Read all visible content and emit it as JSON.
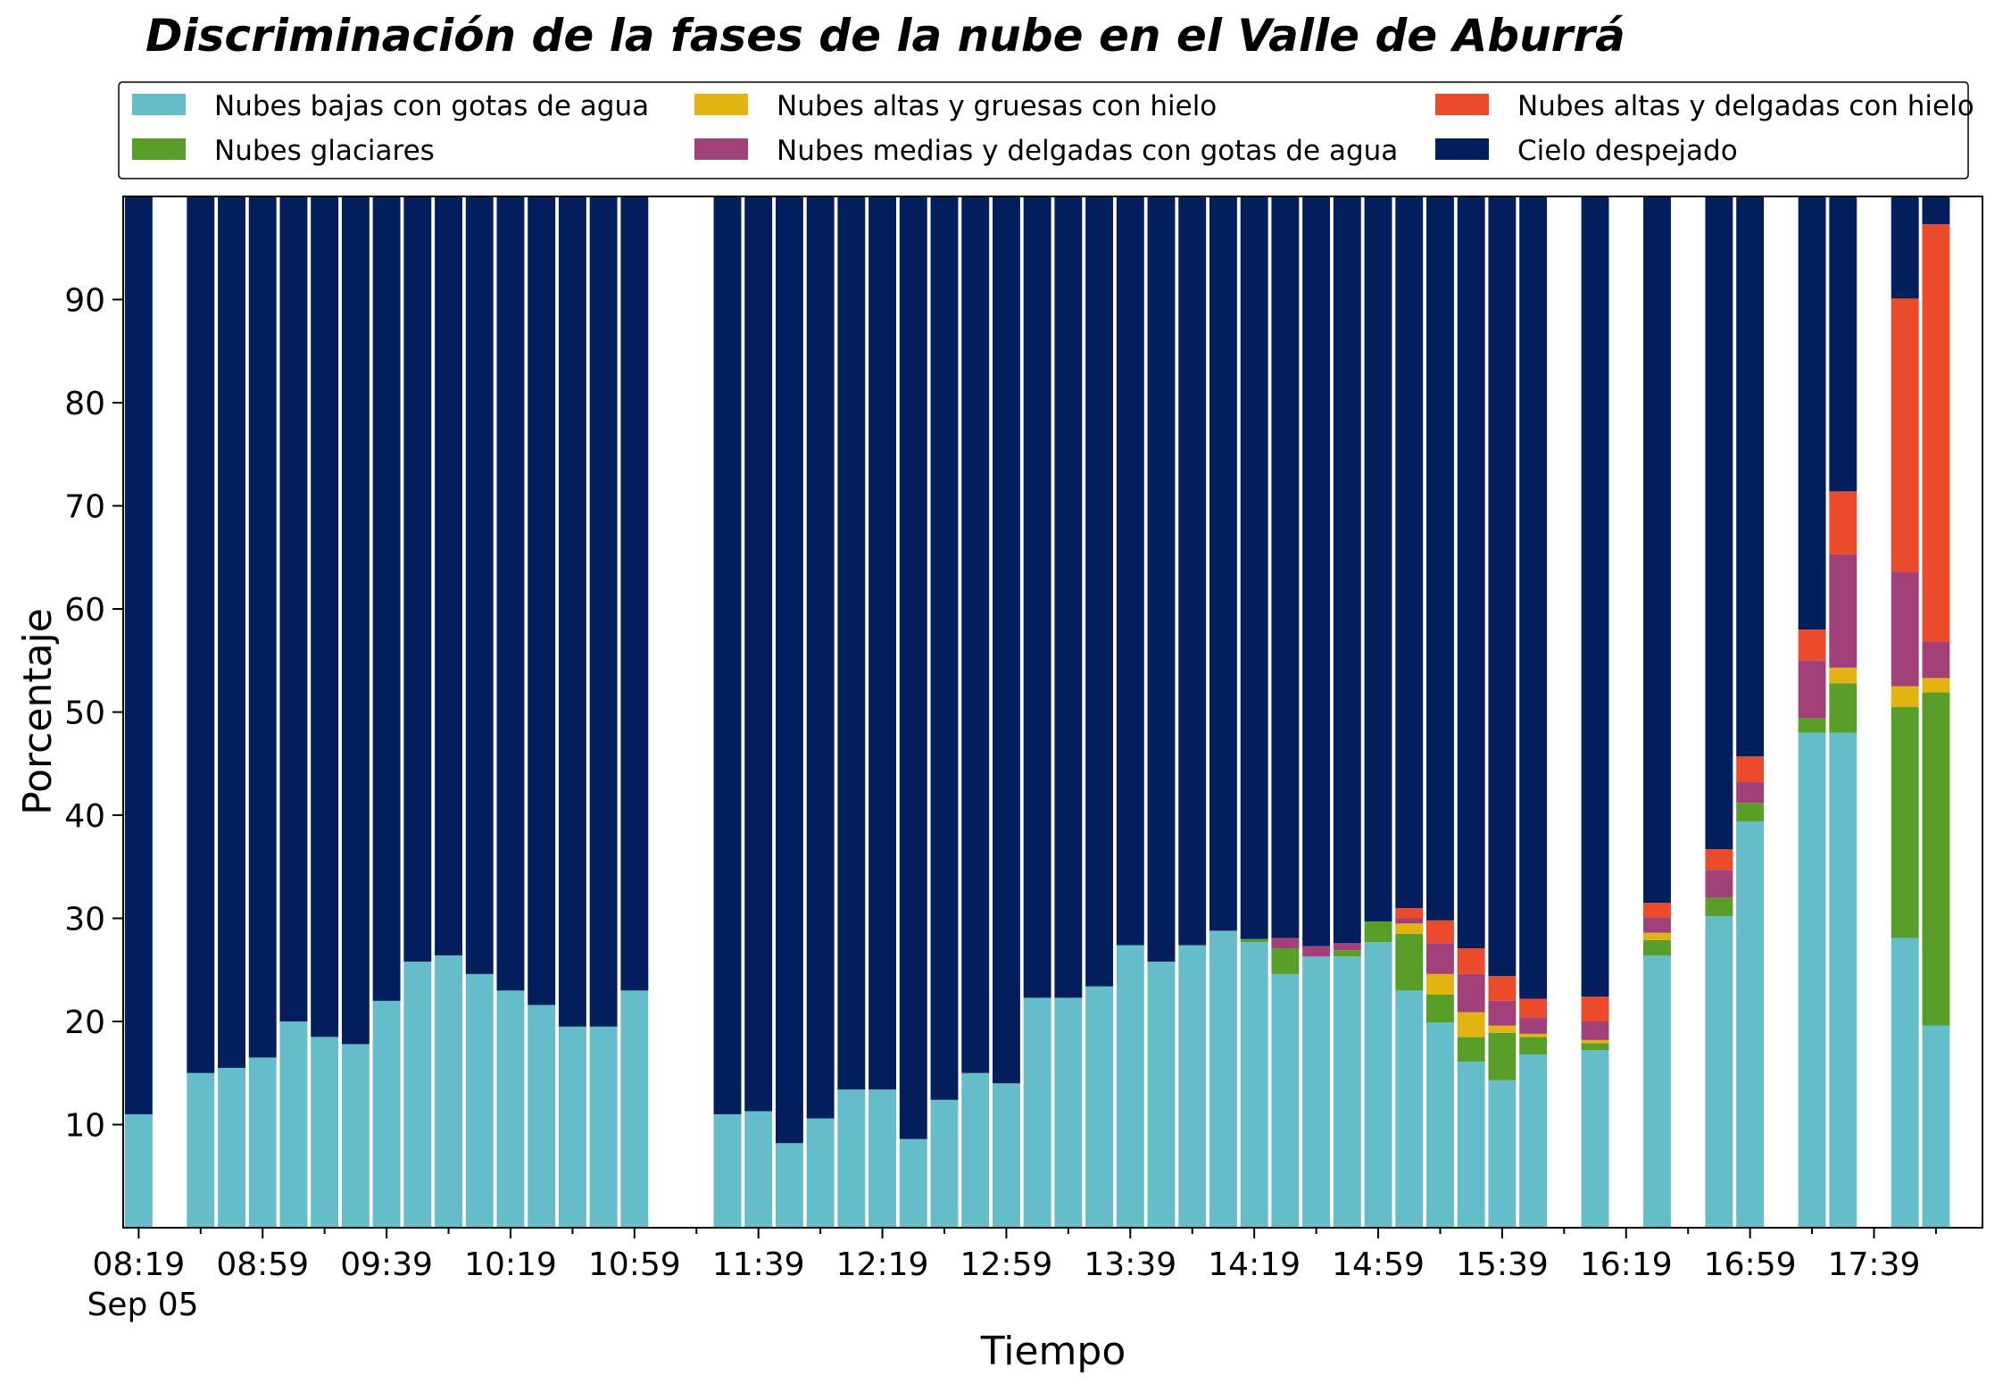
{
  "chart_data": {
    "type": "bar",
    "stacked": true,
    "title": "Discriminación de la fases de la nube en el Valle de Aburrá",
    "xlabel": "Tiempo",
    "ylabel": "Porcentaje",
    "ylim": [
      0,
      100
    ],
    "y_ticks": [
      10,
      20,
      30,
      40,
      50,
      60,
      70,
      80,
      90
    ],
    "x_tick_labels": [
      "08:19",
      "08:59",
      "09:39",
      "10:19",
      "10:59",
      "11:39",
      "12:19",
      "12:59",
      "13:39",
      "14:19",
      "14:59",
      "15:39",
      "16:19",
      "16:59",
      "17:39"
    ],
    "x_tick_slots": [
      0,
      4,
      8,
      12,
      16,
      20,
      24,
      28,
      32,
      36,
      40,
      44,
      48,
      52,
      56
    ],
    "x_date_label": "Sep 05",
    "n_slots": 60,
    "grid": false,
    "legend": {
      "placement": "top",
      "columns": 3
    },
    "series": [
      {
        "name": "Nubes bajas con gotas de agua",
        "color": "#65BDC9"
      },
      {
        "name": "Nubes glaciares",
        "color": "#5A9E2A"
      },
      {
        "name": "Nubes altas y gruesas con hielo",
        "color": "#E3B312"
      },
      {
        "name": "Nubes medias y delgadas con gotas de agua",
        "color": "#A2407A"
      },
      {
        "name": "Nubes altas y delgadas con hielo",
        "color": "#EC4B2B"
      },
      {
        "name": "Cielo despejado",
        "color": "#031E5C"
      }
    ],
    "bars": [
      {
        "slot": 0,
        "values": [
          11,
          0,
          0,
          0,
          0,
          89
        ]
      },
      {
        "slot": 2,
        "values": [
          15,
          0,
          0,
          0,
          0,
          85
        ]
      },
      {
        "slot": 3,
        "values": [
          15.5,
          0,
          0,
          0,
          0,
          84.5
        ]
      },
      {
        "slot": 4,
        "values": [
          16.5,
          0,
          0,
          0,
          0,
          83.5
        ]
      },
      {
        "slot": 5,
        "values": [
          20,
          0,
          0,
          0,
          0,
          80
        ]
      },
      {
        "slot": 6,
        "values": [
          18.5,
          0,
          0,
          0,
          0,
          81.5
        ]
      },
      {
        "slot": 7,
        "values": [
          17.8,
          0,
          0,
          0,
          0,
          82.2
        ]
      },
      {
        "slot": 8,
        "values": [
          22,
          0,
          0,
          0,
          0,
          78
        ]
      },
      {
        "slot": 9,
        "values": [
          25.8,
          0,
          0,
          0,
          0,
          74.2
        ]
      },
      {
        "slot": 10,
        "values": [
          26.4,
          0,
          0,
          0,
          0,
          73.6
        ]
      },
      {
        "slot": 11,
        "values": [
          24.6,
          0,
          0,
          0,
          0,
          75.4
        ]
      },
      {
        "slot": 12,
        "values": [
          23,
          0,
          0,
          0,
          0,
          77
        ]
      },
      {
        "slot": 13,
        "values": [
          21.6,
          0,
          0,
          0,
          0,
          78.4
        ]
      },
      {
        "slot": 14,
        "values": [
          19.5,
          0,
          0,
          0,
          0,
          80.5
        ]
      },
      {
        "slot": 15,
        "values": [
          19.5,
          0,
          0,
          0,
          0,
          80.5
        ]
      },
      {
        "slot": 16,
        "values": [
          23,
          0,
          0,
          0,
          0,
          77
        ]
      },
      {
        "slot": 19,
        "values": [
          11,
          0,
          0,
          0,
          0,
          89
        ]
      },
      {
        "slot": 20,
        "values": [
          11.3,
          0,
          0,
          0,
          0,
          88.7
        ]
      },
      {
        "slot": 21,
        "values": [
          8.2,
          0,
          0,
          0,
          0,
          91.8
        ]
      },
      {
        "slot": 22,
        "values": [
          10.6,
          0,
          0,
          0,
          0,
          89.4
        ]
      },
      {
        "slot": 23,
        "values": [
          13.4,
          0,
          0,
          0,
          0,
          86.6
        ]
      },
      {
        "slot": 24,
        "values": [
          13.4,
          0,
          0,
          0,
          0,
          86.6
        ]
      },
      {
        "slot": 25,
        "values": [
          8.6,
          0,
          0,
          0,
          0,
          91.4
        ]
      },
      {
        "slot": 26,
        "values": [
          12.4,
          0,
          0,
          0,
          0,
          87.6
        ]
      },
      {
        "slot": 27,
        "values": [
          15,
          0,
          0,
          0,
          0,
          85
        ]
      },
      {
        "slot": 28,
        "values": [
          14,
          0,
          0,
          0,
          0,
          86
        ]
      },
      {
        "slot": 29,
        "values": [
          22.3,
          0,
          0,
          0,
          0,
          77.7
        ]
      },
      {
        "slot": 30,
        "values": [
          22.3,
          0,
          0,
          0,
          0,
          77.7
        ]
      },
      {
        "slot": 31,
        "values": [
          23.4,
          0,
          0,
          0,
          0,
          76.6
        ]
      },
      {
        "slot": 32,
        "values": [
          27.4,
          0,
          0,
          0,
          0,
          72.6
        ]
      },
      {
        "slot": 33,
        "values": [
          25.8,
          0,
          0,
          0,
          0,
          74.2
        ]
      },
      {
        "slot": 34,
        "values": [
          27.4,
          0,
          0,
          0,
          0,
          72.6
        ]
      },
      {
        "slot": 35,
        "values": [
          28.8,
          0,
          0,
          0,
          0,
          71.2
        ]
      },
      {
        "slot": 36,
        "values": [
          27.7,
          0.3,
          0,
          0,
          0,
          72
        ]
      },
      {
        "slot": 37,
        "values": [
          24.6,
          2.5,
          0,
          1,
          0,
          71.9
        ]
      },
      {
        "slot": 38,
        "values": [
          26.3,
          0,
          0,
          1,
          0,
          72.7
        ]
      },
      {
        "slot": 39,
        "values": [
          26.3,
          0.6,
          0,
          0.7,
          0,
          72.4
        ]
      },
      {
        "slot": 40,
        "values": [
          27.7,
          2,
          0,
          0,
          0,
          70.3
        ]
      },
      {
        "slot": 41,
        "values": [
          23,
          5.5,
          1,
          0.5,
          1,
          69
        ]
      },
      {
        "slot": 42,
        "values": [
          19.9,
          2.7,
          2,
          3,
          2.2,
          70.2
        ]
      },
      {
        "slot": 43,
        "values": [
          16.1,
          2.4,
          2.4,
          3.7,
          2.5,
          72.9
        ]
      },
      {
        "slot": 44,
        "values": [
          14.3,
          4.6,
          0.7,
          2.4,
          2.4,
          75.6
        ]
      },
      {
        "slot": 45,
        "values": [
          16.8,
          1.7,
          0.3,
          1.6,
          1.8,
          77.8
        ]
      },
      {
        "slot": 47,
        "values": [
          17.2,
          0.7,
          0.3,
          1.8,
          2.4,
          77.6
        ]
      },
      {
        "slot": 49,
        "values": [
          26.4,
          1.5,
          0.7,
          1.5,
          1.4,
          68.5
        ]
      },
      {
        "slot": 51,
        "values": [
          30.2,
          1.8,
          0,
          2.7,
          2,
          63.3
        ]
      },
      {
        "slot": 52,
        "values": [
          39.4,
          1.8,
          0,
          2,
          2.5,
          54.3
        ]
      },
      {
        "slot": 54,
        "values": [
          48,
          1.4,
          0,
          5.6,
          3,
          42
        ]
      },
      {
        "slot": 55,
        "values": [
          48,
          4.8,
          1.5,
          11,
          6.1,
          28.6
        ]
      },
      {
        "slot": 57,
        "values": [
          28.1,
          22.4,
          2,
          11.1,
          26.5,
          9.9
        ]
      },
      {
        "slot": 58,
        "values": [
          19.6,
          32.3,
          1.4,
          3.5,
          40.5,
          2.7
        ]
      }
    ]
  }
}
